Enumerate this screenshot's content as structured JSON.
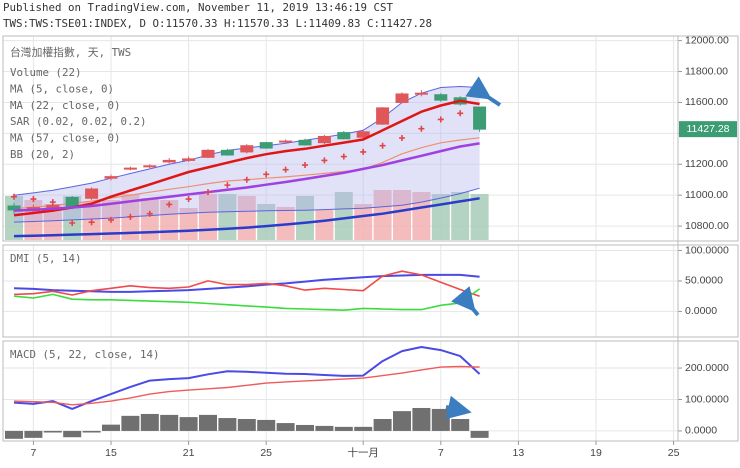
{
  "header": {
    "published": "Published on TradingView.com, November 11, 2019 13:46:19 CST",
    "symbol": "TWS:TWS:TSE01:INDEX, D O:11570.33 H:11570.33 L:11409.83 C:11427.28"
  },
  "chart_data": [
    {
      "type": "candlestick",
      "title": "台灣加權指數, 天, TWS",
      "ylim": [
        10710,
        12030
      ],
      "yticks": [
        {
          "value": 10800,
          "label": "10800.00"
        },
        {
          "value": 11000,
          "label": "11000.00"
        },
        {
          "value": 11200,
          "label": "11200.00"
        },
        {
          "value": 11400,
          "label": "11400.00"
        },
        {
          "value": 11600,
          "label": "11600.00"
        },
        {
          "value": 11800,
          "label": "11800.00"
        },
        {
          "value": 12000,
          "label": "12000.00"
        }
      ],
      "grid": true,
      "up_color": "#e0575a",
      "down_color": "#3c9c74",
      "open": [
        10930,
        10900,
        10920,
        10985,
        10980,
        11110,
        11170,
        11185,
        11215,
        11225,
        11245,
        11290,
        11280,
        11340,
        11345,
        11355,
        11340,
        11405,
        11375,
        11460,
        11600,
        11655,
        11650,
        11630,
        11570.33,
        null,
        null,
        null,
        null,
        null,
        null,
        null,
        null,
        null,
        null
      ],
      "high": [
        10950,
        10940,
        10960,
        10995,
        11050,
        11135,
        11185,
        11200,
        11240,
        11250,
        11300,
        11300,
        11330,
        11345,
        11360,
        11365,
        11390,
        11415,
        11420,
        11570,
        11665,
        11680,
        11660,
        11640,
        11570.33,
        null,
        null,
        null,
        null,
        null,
        null,
        null,
        null,
        null,
        null
      ],
      "low": [
        10880,
        10890,
        10900,
        10910,
        10970,
        11095,
        11160,
        11175,
        11205,
        11215,
        11240,
        11255,
        11270,
        11300,
        11335,
        11320,
        11330,
        11360,
        11365,
        11455,
        11595,
        11640,
        11605,
        11580,
        11409.83,
        null,
        null,
        null,
        null,
        null,
        null,
        null,
        null,
        null,
        null
      ],
      "close": [
        10905,
        10920,
        10935,
        10920,
        11040,
        11120,
        11175,
        11190,
        11225,
        11235,
        11290,
        11260,
        11320,
        11305,
        11350,
        11325,
        11380,
        11365,
        11410,
        11565,
        11655,
        11660,
        11615,
        11590,
        11427.28,
        null,
        null,
        null,
        null,
        null,
        null,
        null,
        null,
        null,
        null
      ],
      "close_label": "11427.28",
      "volume": {
        "name": "Volume (22)",
        "up_color": "#f2b0b0",
        "down_color": "#a8cbb8",
        "values": [
          1540,
          1400,
          1260,
          1540,
          1330,
          1400,
          1610,
          1470,
          1400,
          1120,
          1610,
          1610,
          1540,
          1260,
          1155,
          1540,
          1050,
          1680,
          1260,
          1750,
          1750,
          1680,
          1610,
          1680,
          1610,
          null,
          null,
          null,
          null,
          null,
          null,
          null,
          null,
          null,
          null
        ]
      },
      "series": [
        {
          "name": "MA (5, close, 0)",
          "color": "#e01616",
          "width": 2.5,
          "values": [
            10870,
            10885,
            10900,
            10920,
            10945,
            10990,
            11030,
            11070,
            11110,
            11150,
            11180,
            11210,
            11240,
            11265,
            11285,
            11300,
            11320,
            11340,
            11360,
            11420,
            11480,
            11540,
            11580,
            11610,
            11590,
            null,
            null,
            null,
            null,
            null,
            null,
            null,
            null,
            null,
            null
          ]
        },
        {
          "name": "MA (22, close, 0)",
          "color": "#a040e0",
          "width": 2.5,
          "values": [
            10900,
            10905,
            10912,
            10920,
            10930,
            10945,
            10960,
            10975,
            10990,
            11005,
            11020,
            11035,
            11050,
            11068,
            11085,
            11105,
            11125,
            11145,
            11170,
            11195,
            11225,
            11255,
            11285,
            11315,
            11335,
            null,
            null,
            null,
            null,
            null,
            null,
            null,
            null,
            null,
            null
          ]
        },
        {
          "name": "SAR (0.02, 0.02, 0.2)",
          "color": "#e04848",
          "style": "cross",
          "values": [
            10990,
            10975,
            10955,
            10820,
            10825,
            10840,
            10860,
            10880,
            10940,
            10975,
            11020,
            11065,
            11100,
            11135,
            11165,
            11195,
            11225,
            11250,
            11280,
            11320,
            11370,
            11430,
            11490,
            11530,
            11680,
            null,
            null,
            null,
            null,
            null,
            null,
            null,
            null,
            null,
            null
          ]
        },
        {
          "name": "MA (57, close, 0)",
          "color": "#2a3ccc",
          "width": 2.5,
          "values": [
            10735,
            10738,
            10741,
            10745,
            10748,
            10752,
            10756,
            10760,
            10765,
            10770,
            10776,
            10783,
            10790,
            10800,
            10810,
            10822,
            10835,
            10850,
            10865,
            10880,
            10900,
            10920,
            10940,
            10960,
            10980,
            null,
            null,
            null,
            null,
            null,
            null,
            null,
            null,
            null,
            null
          ]
        }
      ],
      "bands": {
        "name": "BB (20, 2)",
        "color": "#5a64e0",
        "basis_color": "#f09070",
        "fill": "#b4b4ee",
        "upper": [
          11000,
          11015,
          11032,
          11055,
          11078,
          11110,
          11140,
          11170,
          11200,
          11226,
          11260,
          11290,
          11305,
          11320,
          11336,
          11355,
          11375,
          11395,
          11420,
          11500,
          11600,
          11660,
          11697,
          11703,
          11697,
          null,
          null,
          null,
          null,
          null,
          null,
          null,
          null,
          null,
          null
        ],
        "basis": [
          10913,
          10922,
          10933,
          10947,
          10962,
          10981,
          11000,
          11019,
          11038,
          11055,
          11075,
          11092,
          11100,
          11110,
          11118,
          11129,
          11141,
          11153,
          11168,
          11212,
          11268,
          11307,
          11339,
          11357,
          11371,
          null,
          null,
          null,
          null,
          null,
          null,
          null,
          null,
          null,
          null
        ],
        "lower": [
          10826,
          10830,
          10835,
          10840,
          10846,
          10852,
          10860,
          10868,
          10876,
          10883,
          10890,
          10893,
          10896,
          10899,
          10901,
          10903,
          10907,
          10911,
          10916,
          10925,
          10935,
          10955,
          10981,
          11010,
          11045,
          null,
          null,
          null,
          null,
          null,
          null,
          null,
          null,
          null,
          null
        ]
      }
    },
    {
      "type": "line",
      "title": "DMI (5, 14)",
      "ylim": [
        -42,
        109
      ],
      "yticks": [
        {
          "value": 0,
          "label": "0.0000"
        },
        {
          "value": 50,
          "label": "50.0000"
        },
        {
          "value": 100,
          "label": "100.0000"
        }
      ],
      "grid": true,
      "series": [
        {
          "color": "#4a4ae6",
          "width": 2,
          "values": [
            38,
            37,
            35,
            34,
            33,
            32,
            32,
            33,
            34,
            35,
            37,
            39,
            41,
            44,
            46,
            49,
            52,
            54,
            56,
            58,
            59,
            60,
            60,
            60,
            57,
            null,
            null,
            null,
            null,
            null,
            null,
            null,
            null,
            null,
            null
          ]
        },
        {
          "color": "#f04a4a",
          "width": 1.6,
          "values": [
            28,
            29,
            33,
            27,
            34,
            38,
            42,
            39,
            38,
            40,
            50,
            44,
            44,
            46,
            42,
            35,
            38,
            36,
            34,
            58,
            66,
            60,
            48,
            36,
            25,
            null,
            null,
            null,
            null,
            null,
            null,
            null,
            null,
            null,
            null
          ]
        },
        {
          "color": "#3cdc3c",
          "width": 1.6,
          "values": [
            25,
            22,
            28,
            20,
            19,
            19,
            18,
            17,
            16,
            15,
            13,
            11,
            9,
            7,
            5,
            4,
            3,
            2,
            5,
            4,
            3,
            3,
            10,
            14,
            37,
            null,
            null,
            null,
            null,
            null,
            null,
            null,
            null,
            null,
            null
          ]
        }
      ]
    },
    {
      "type": "line",
      "title": "MACD (5, 22, close, 14)",
      "ylim": [
        -32,
        286
      ],
      "yticks": [
        {
          "value": 0,
          "label": "0.0000"
        },
        {
          "value": 100,
          "label": "100.0000"
        },
        {
          "value": 200,
          "label": "200.0000"
        }
      ],
      "grid": true,
      "categories": [
        null,
        "7",
        null,
        null,
        null,
        "15",
        null,
        null,
        null,
        "21",
        null,
        null,
        null,
        "25",
        null,
        null,
        null,
        null,
        "十一月",
        null,
        null,
        null,
        "7",
        null,
        null,
        null,
        "13",
        null,
        null,
        null,
        "19",
        null,
        null,
        null,
        "25"
      ],
      "series": [
        {
          "color": "#707070",
          "style": "histogram",
          "values": [
            -25,
            -22,
            -5,
            -20,
            -5,
            20,
            48,
            54,
            51,
            44,
            51,
            41,
            38,
            35,
            25,
            19,
            16,
            13,
            13,
            38,
            63,
            73,
            70,
            38,
            -22,
            null,
            null,
            null,
            null,
            null,
            null,
            null,
            null,
            null,
            null
          ]
        },
        {
          "color": "#4a4ae6",
          "width": 2,
          "values": [
            90,
            86,
            95,
            70,
            95,
            117,
            140,
            160,
            165,
            168,
            180,
            190,
            188,
            185,
            182,
            181,
            178,
            175,
            176,
            222,
            254,
            267,
            257,
            238,
            181,
            null,
            null,
            null,
            null,
            null,
            null,
            null,
            null,
            null,
            null
          ]
        },
        {
          "color": "#f05a5a",
          "width": 1.4,
          "values": [
            95,
            93,
            91,
            83,
            88,
            95,
            105,
            117,
            125,
            130,
            134,
            138,
            145,
            152,
            156,
            159,
            162,
            165,
            168,
            176,
            184,
            194,
            203,
            205,
            203,
            null,
            null,
            null,
            null,
            null,
            null,
            null,
            null,
            null,
            null
          ]
        }
      ]
    }
  ]
}
